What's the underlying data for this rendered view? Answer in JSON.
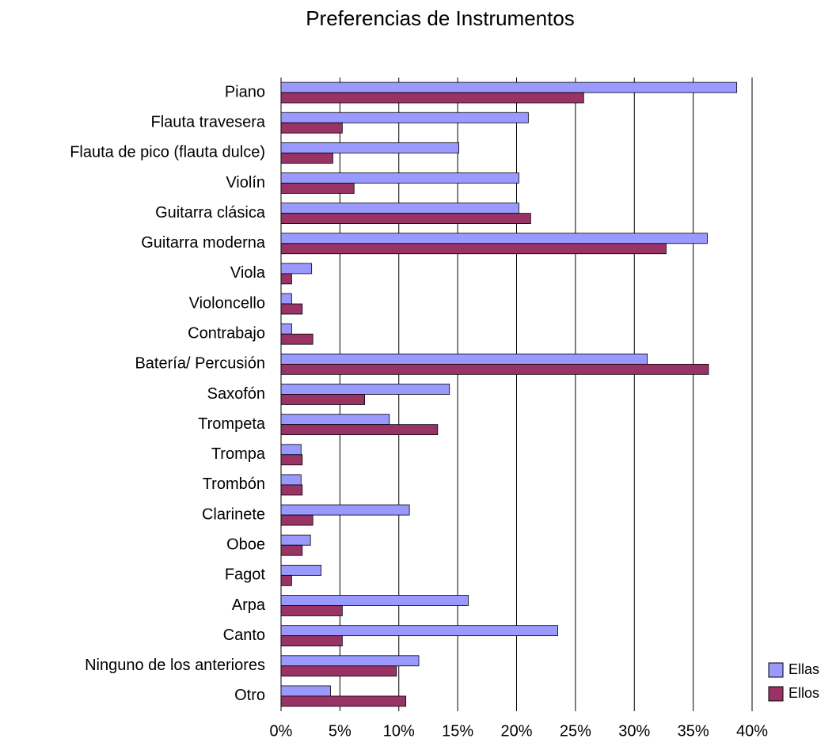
{
  "chart_data": {
    "type": "bar",
    "orientation": "horizontal",
    "title": "Preferencias de Instrumentos",
    "categories": [
      "Piano",
      "Flauta travesera",
      "Flauta de pico (flauta dulce)",
      "Violín",
      "Guitarra clásica",
      "Guitarra moderna",
      "Viola",
      "Violoncello",
      "Contrabajo",
      "Batería/ Percusión",
      "Saxofón",
      "Trompeta",
      "Trompa",
      "Trombón",
      "Clarinete",
      "Oboe",
      "Fagot",
      "Arpa",
      "Canto",
      "Ninguno de los anteriores",
      "Otro"
    ],
    "series": [
      {
        "name": "Ellas",
        "color": "#9999ff",
        "values": [
          38.7,
          21.0,
          15.1,
          20.2,
          20.2,
          36.2,
          2.6,
          0.9,
          0.9,
          31.1,
          14.3,
          9.2,
          1.7,
          1.7,
          10.9,
          2.5,
          3.4,
          15.9,
          23.5,
          11.7,
          4.2
        ]
      },
      {
        "name": "Ellos",
        "color": "#993366",
        "values": [
          25.7,
          5.2,
          4.4,
          6.2,
          21.2,
          32.7,
          0.9,
          1.8,
          2.7,
          36.3,
          7.1,
          13.3,
          1.8,
          1.8,
          2.7,
          1.8,
          0.9,
          5.2,
          5.2,
          9.8,
          10.6
        ]
      }
    ],
    "xlim": [
      0,
      40
    ],
    "xticks": [
      {
        "value": 0,
        "label": "0%"
      },
      {
        "value": 5,
        "label": "5%"
      },
      {
        "value": 10,
        "label": "10%"
      },
      {
        "value": 15,
        "label": "15%"
      },
      {
        "value": 20,
        "label": "20%"
      },
      {
        "value": 25,
        "label": "25%"
      },
      {
        "value": 30,
        "label": "30%"
      },
      {
        "value": 35,
        "label": "35%"
      },
      {
        "value": 40,
        "label": "40%"
      }
    ],
    "grid": true,
    "legend": "right"
  }
}
